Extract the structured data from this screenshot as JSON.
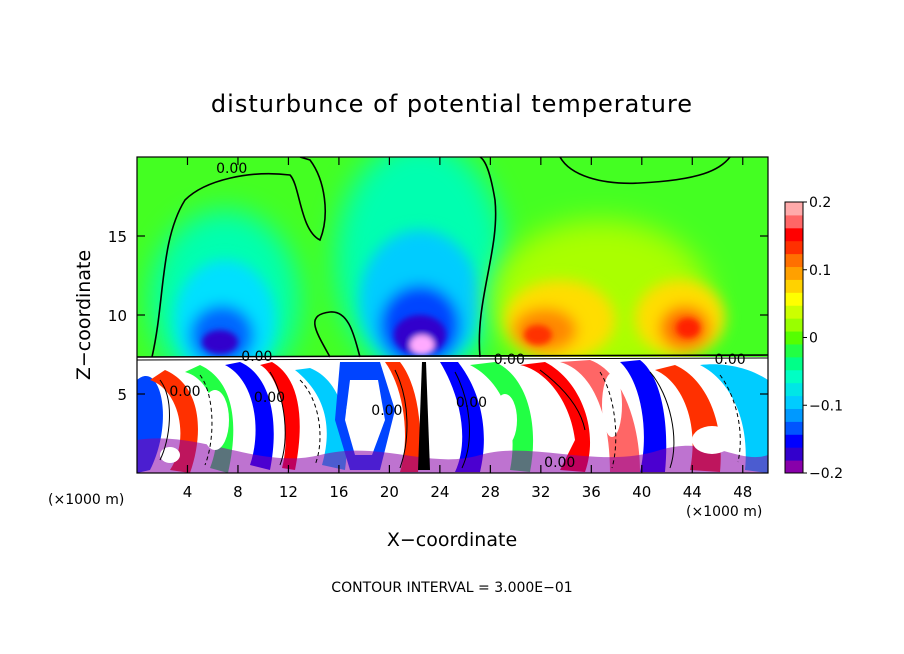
{
  "chart_data": {
    "type": "heatmap",
    "title": "disturbunce of potential temperature",
    "xlabel": "X−coordinate",
    "ylabel": "Z−coordinate",
    "x_unit_left": "(×1000 m)",
    "x_unit_right": "(×1000 m)",
    "footer": "CONTOUR INTERVAL = 3.000E−01",
    "xlim": [
      0,
      50
    ],
    "ylim": [
      0,
      20
    ],
    "x_ticks": [
      4,
      8,
      12,
      16,
      20,
      24,
      28,
      32,
      36,
      40,
      44,
      48
    ],
    "y_ticks": [
      5,
      10,
      15
    ],
    "colorbar": {
      "vmin": -0.2,
      "vmax": 0.2,
      "ticks": [
        0.2,
        0.1,
        0,
        -0.1,
        -0.2
      ],
      "tick_labels": [
        "0.2",
        "0.1",
        "0",
        "−0.1",
        "−0.2"
      ],
      "colors": [
        "#8800aa",
        "#3300cc",
        "#0000ff",
        "#0055ff",
        "#0099ff",
        "#00ccff",
        "#00e6e6",
        "#00ffc4",
        "#00ff88",
        "#22ff44",
        "#55ff00",
        "#99ff00",
        "#ccff00",
        "#ffff00",
        "#ffd200",
        "#ffa000",
        "#ff7000",
        "#ff3000",
        "#ff0000",
        "#ff6666",
        "#ffaaaa"
      ]
    },
    "contour_labels": [
      {
        "text": "0.00",
        "x": 7.5,
        "z": 19.3
      },
      {
        "text": "0.00",
        "x": 9.5,
        "z": 7.4
      },
      {
        "text": "0.00",
        "x": 29.5,
        "z": 7.2
      },
      {
        "text": "0.00",
        "x": 47,
        "z": 7.2
      },
      {
        "text": "0.00",
        "x": 10.5,
        "z": 4.8
      },
      {
        "text": "0.00",
        "x": 19.8,
        "z": 4.0
      },
      {
        "text": "0.00",
        "x": 26.5,
        "z": 4.5
      },
      {
        "text": "0.00",
        "x": 33.5,
        "z": 0.7
      },
      {
        "text": "0.00",
        "x": 3.8,
        "z": 5.2
      }
    ],
    "upper_features": [
      {
        "x": 6.5,
        "z": 9.5,
        "value": -0.18
      },
      {
        "x": 9.5,
        "z": 11.5,
        "value": -0.1
      },
      {
        "x": 22,
        "z": 10.5,
        "value": -0.2
      },
      {
        "x": 23,
        "z": 15,
        "value": -0.08
      },
      {
        "x": 31,
        "z": 9.5,
        "value": 0.14
      },
      {
        "x": 36,
        "z": 11.5,
        "value": 0.09
      },
      {
        "x": 43,
        "z": 9.5,
        "value": 0.16
      },
      {
        "x": 41,
        "z": 15.5,
        "value": 0.04
      }
    ]
  }
}
